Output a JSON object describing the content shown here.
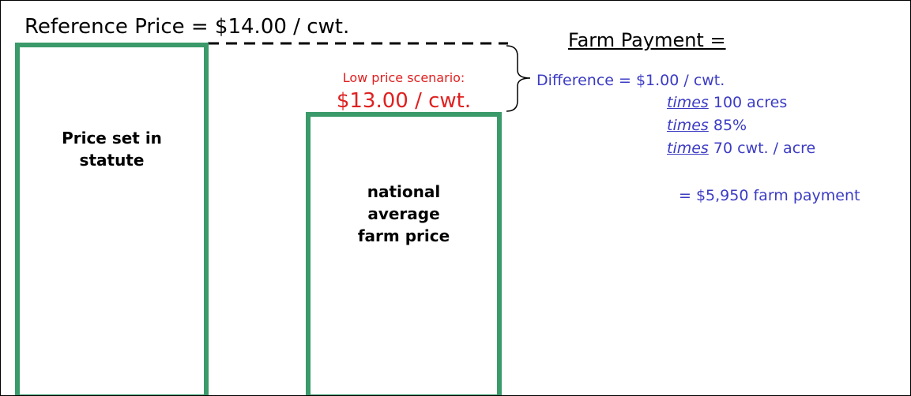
{
  "header": {
    "reference_price": "Reference Price = $14.00 / cwt.",
    "farm_payment": "Farm Payment ="
  },
  "boxes": [
    {
      "label_lines": [
        "Price set in",
        "statute"
      ]
    },
    {
      "label_lines": [
        "national",
        "average",
        "farm price"
      ]
    }
  ],
  "scenario": {
    "caption": "Low price scenario:",
    "price": "$13.00 / cwt."
  },
  "calculation": {
    "difference": "Difference = $1.00 / cwt.",
    "factors": [
      {
        "word": "times",
        "text": "100 acres"
      },
      {
        "word": "times",
        "text": "85%"
      },
      {
        "word": "times",
        "text": "70 cwt. / acre"
      }
    ],
    "result": "= $5,950 farm payment"
  }
}
